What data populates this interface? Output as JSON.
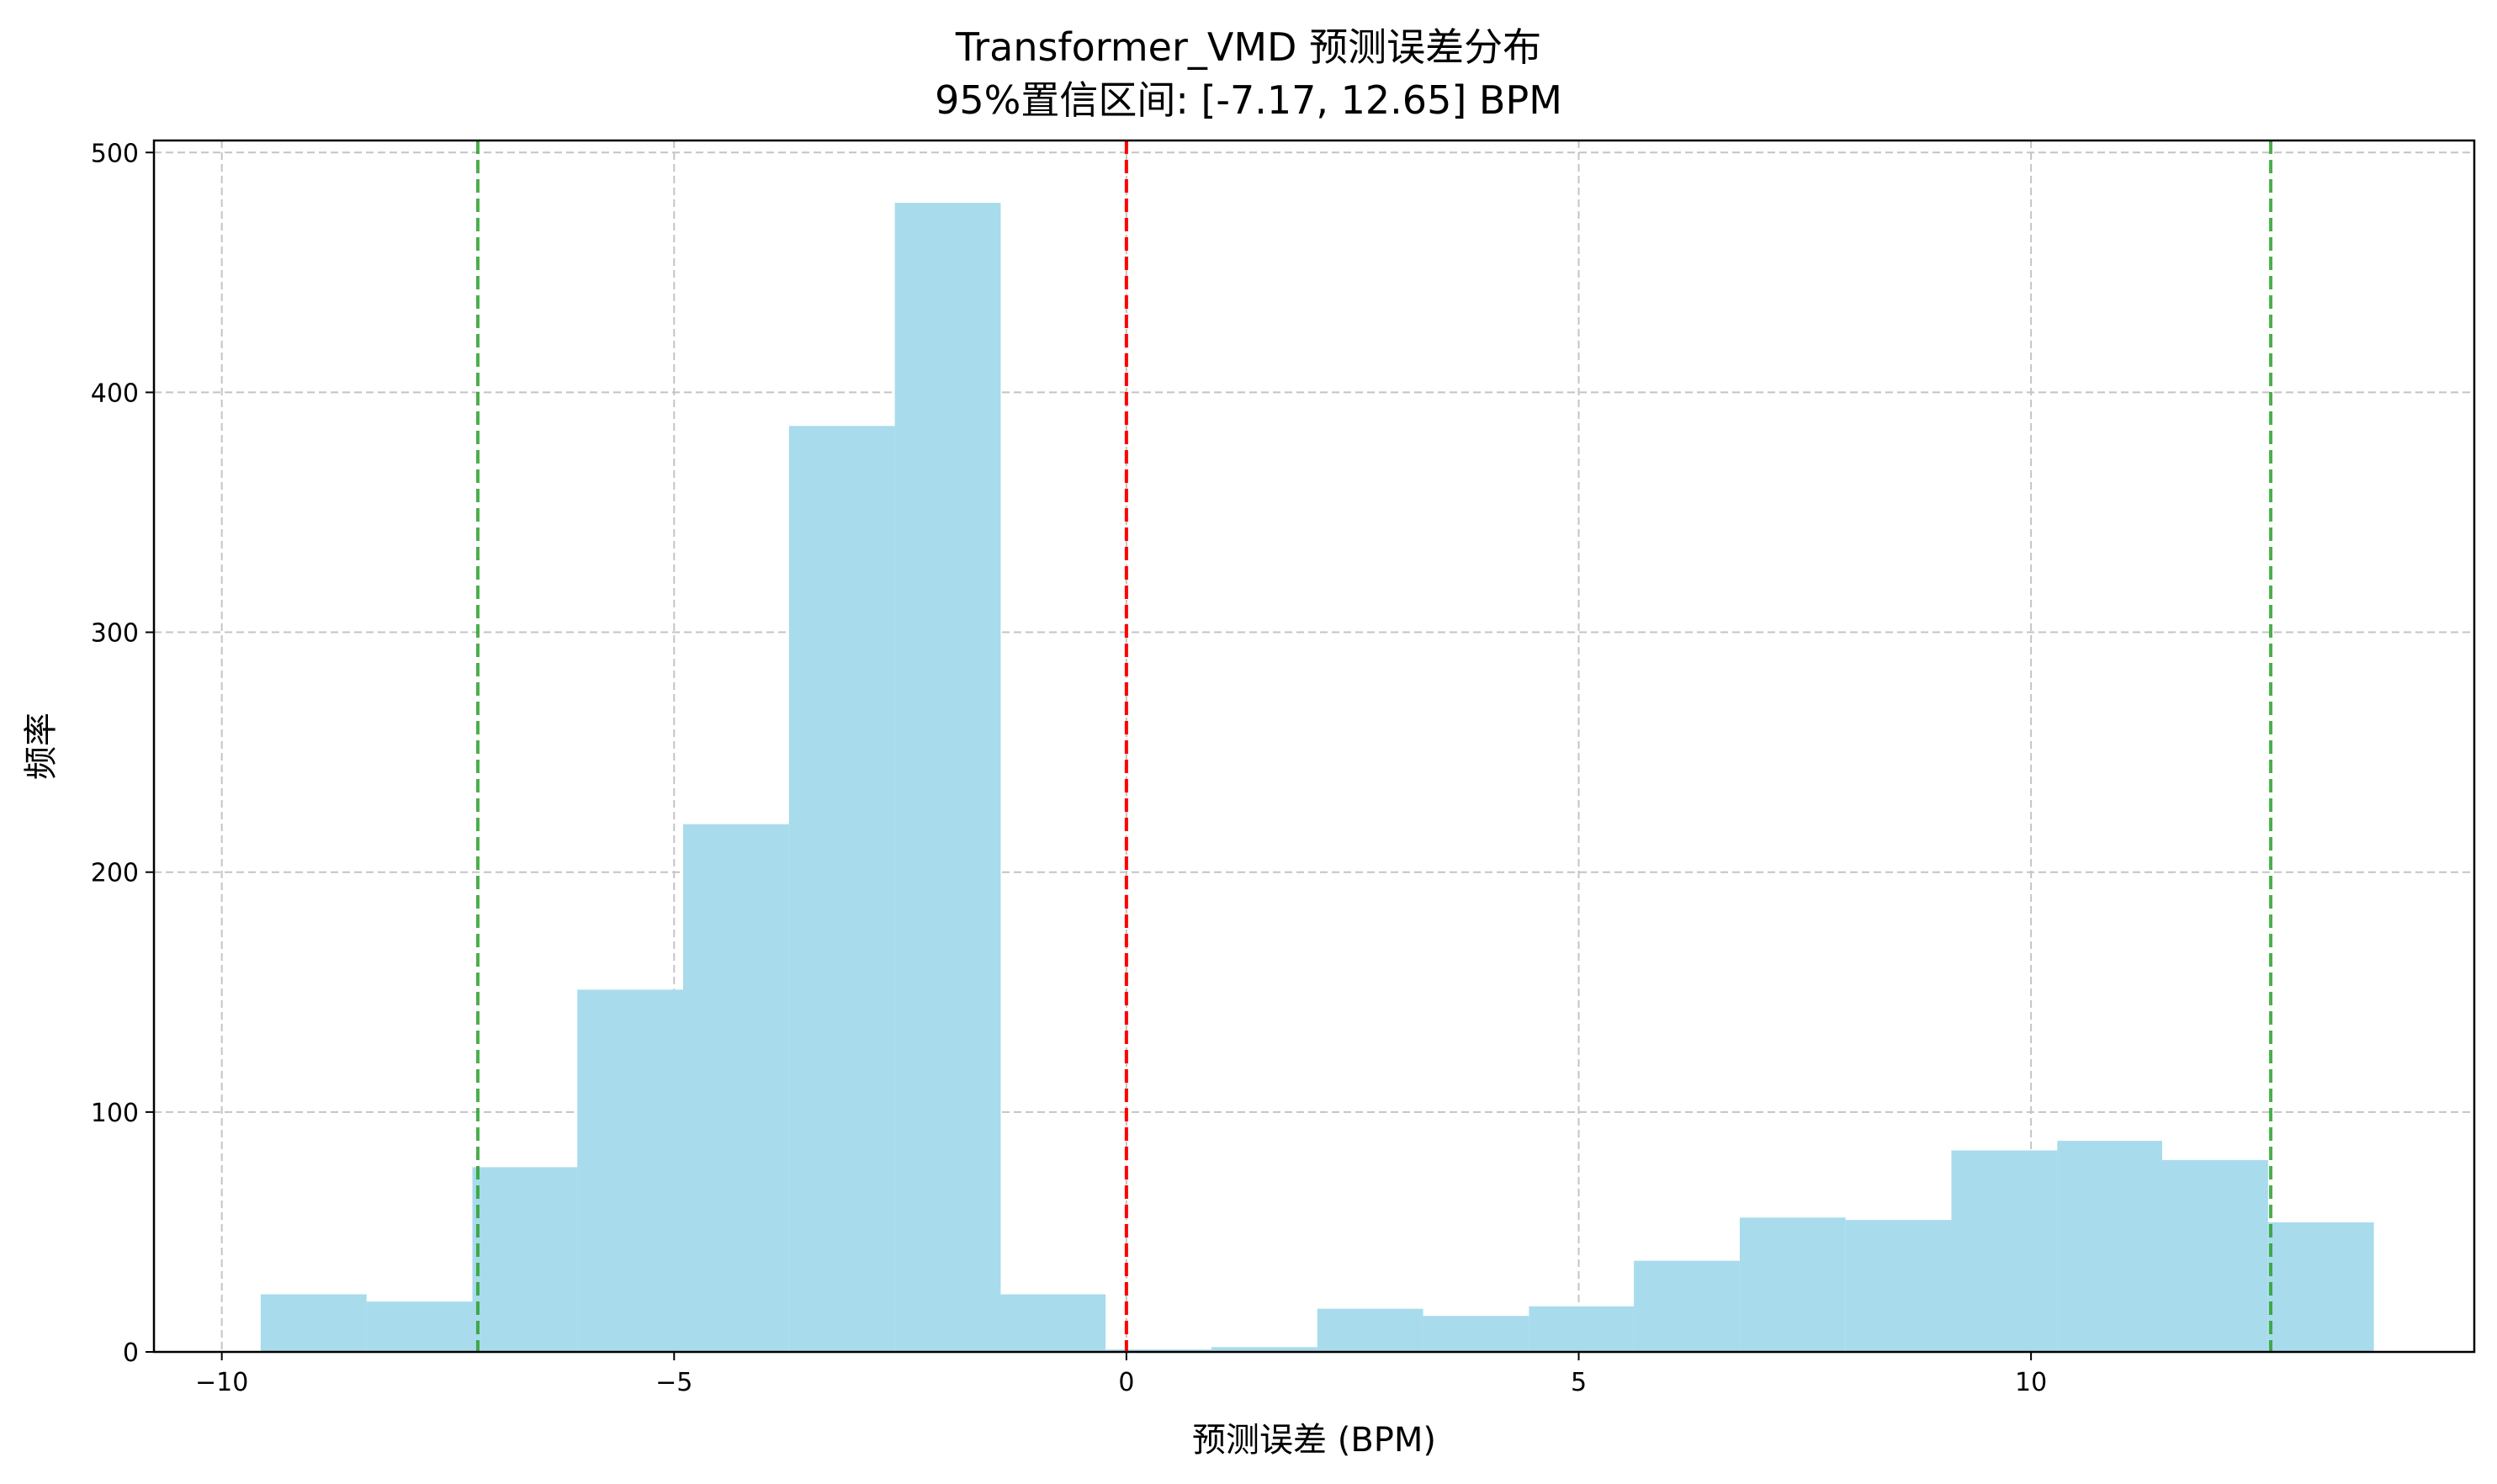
{
  "chart_data": {
    "type": "bar",
    "subtype": "histogram",
    "title": "Transformer_VMD 预测误差分布",
    "subtitle": "95%置信区间: [-7.17, 12.65] BPM",
    "xlabel": "预测误差 (BPM)",
    "ylabel": "频率",
    "xlim": [
      -10.75,
      14.9
    ],
    "ylim": [
      0,
      505
    ],
    "xticks": [
      -10,
      -5,
      0,
      5,
      10
    ],
    "xtick_labels": [
      "−10",
      "−5",
      "0",
      "5",
      "10"
    ],
    "yticks": [
      0,
      100,
      200,
      300,
      400,
      500
    ],
    "ytick_labels": [
      "0",
      "100",
      "200",
      "300",
      "400",
      "500"
    ],
    "grid": true,
    "bins": [
      {
        "start": -9.57,
        "end": -8.4,
        "count": 24
      },
      {
        "start": -8.4,
        "end": -7.23,
        "count": 21
      },
      {
        "start": -7.23,
        "end": -6.07,
        "count": 77
      },
      {
        "start": -6.07,
        "end": -4.9,
        "count": 151
      },
      {
        "start": -4.9,
        "end": -3.73,
        "count": 220
      },
      {
        "start": -3.73,
        "end": -2.56,
        "count": 386
      },
      {
        "start": -2.56,
        "end": -1.39,
        "count": 479
      },
      {
        "start": -1.39,
        "end": -0.23,
        "count": 24
      },
      {
        "start": -0.23,
        "end": 0.94,
        "count": 1
      },
      {
        "start": 0.94,
        "end": 2.11,
        "count": 2
      },
      {
        "start": 2.11,
        "end": 3.28,
        "count": 18
      },
      {
        "start": 3.28,
        "end": 4.45,
        "count": 15
      },
      {
        "start": 4.45,
        "end": 5.61,
        "count": 19
      },
      {
        "start": 5.61,
        "end": 6.78,
        "count": 38
      },
      {
        "start": 6.78,
        "end": 7.95,
        "count": 56
      },
      {
        "start": 7.95,
        "end": 9.12,
        "count": 55
      },
      {
        "start": 9.12,
        "end": 10.29,
        "count": 84
      },
      {
        "start": 10.29,
        "end": 11.45,
        "count": 88
      },
      {
        "start": 11.45,
        "end": 12.62,
        "count": 80
      },
      {
        "start": 12.62,
        "end": 13.79,
        "count": 54
      }
    ],
    "reference_lines": [
      {
        "x": 0,
        "color": "#ff0000",
        "style": "dashed"
      },
      {
        "x": -7.17,
        "color": "#2ca02c",
        "style": "dashed"
      },
      {
        "x": 12.65,
        "color": "#2ca02c",
        "style": "dashed"
      }
    ],
    "colors": {
      "bar": "#a8dbec",
      "zero_line": "#ff0000",
      "ci_line": "#2ca02c",
      "grid": "#c4c4c4",
      "axis": "#000000"
    }
  }
}
